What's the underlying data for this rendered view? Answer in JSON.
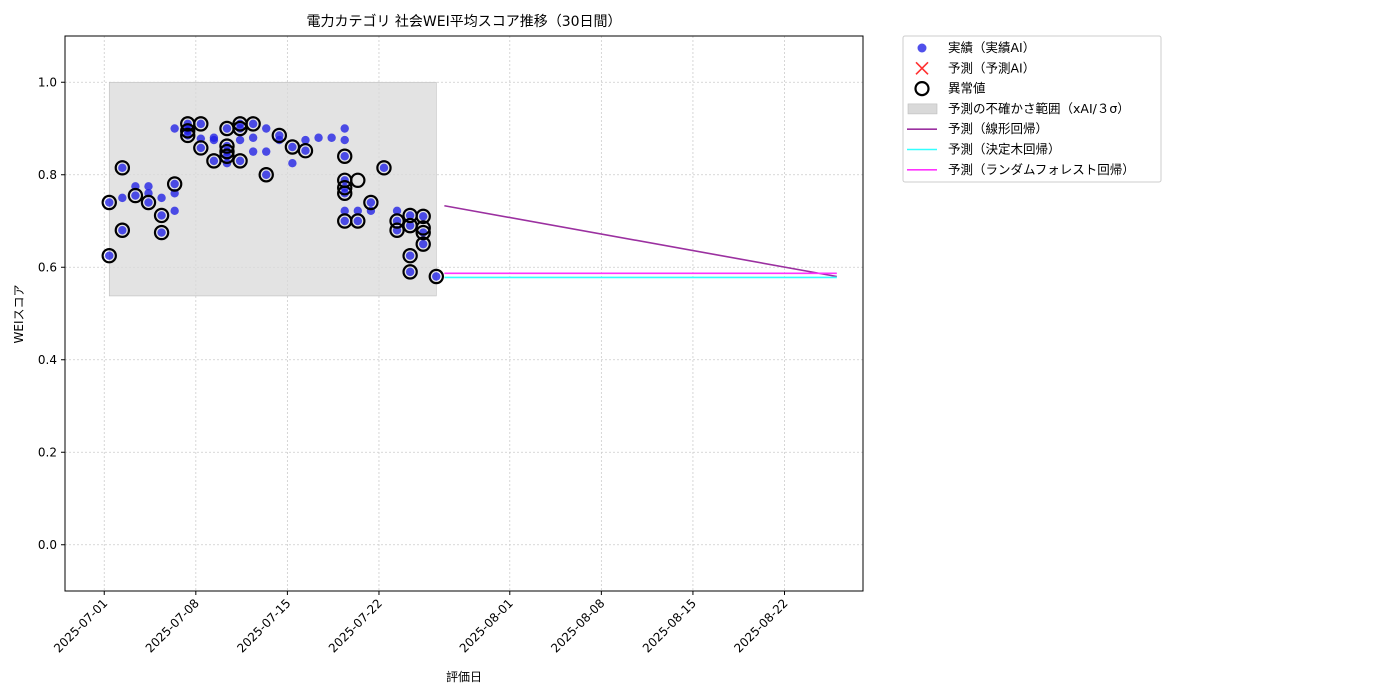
{
  "chart_data": {
    "type": "scatter",
    "title": "電力カテゴリ 社会WEI平均スコア推移（30日間）",
    "xlabel": "評価日",
    "ylabel": "WEIスコア",
    "ylim": [
      -0.1,
      1.1
    ],
    "xlim": [
      "2025-06-28",
      "2025-08-28"
    ],
    "y_ticks": [
      "0.0",
      "0.2",
      "0.4",
      "0.6",
      "0.8",
      "1.0"
    ],
    "x_ticks": [
      "2025-07-01",
      "2025-07-08",
      "2025-07-15",
      "2025-07-22",
      "2025-08-01",
      "2025-08-08",
      "2025-08-15",
      "2025-08-22"
    ],
    "grid": true,
    "legend_position": "outside-top-right",
    "colors": {
      "actual": "#1f1fe6",
      "predicted": "#ff3030",
      "anomaly_edge": "#000000",
      "band": "#d9d9d9",
      "linear": "#9b30a0",
      "tree": "#33ffff",
      "forest": "#ff33ff"
    },
    "legend": [
      {
        "key": "actual",
        "label": "実績（実績AI）"
      },
      {
        "key": "predicted",
        "label": "予測（予測AI）"
      },
      {
        "key": "anomaly",
        "label": "異常値"
      },
      {
        "key": "band",
        "label": "予測の不確かさ範囲（xAI/３σ）"
      },
      {
        "key": "linear",
        "label": "予測（線形回帰）"
      },
      {
        "key": "tree",
        "label": "予測（決定木回帰）"
      },
      {
        "key": "forest",
        "label": "予測（ランダムフォレスト回帰）"
      }
    ],
    "uncertainty_band": {
      "x_start": "2025-07-01",
      "x_end": "2025-07-26",
      "y_low": 0.538,
      "y_high": 1.0
    },
    "series": [
      {
        "name": "実績（実績AI）",
        "points": [
          [
            "2025-07-01",
            0.625
          ],
          [
            "2025-07-01",
            0.74
          ],
          [
            "2025-07-02",
            0.815
          ],
          [
            "2025-07-02",
            0.68
          ],
          [
            "2025-07-02",
            0.75
          ],
          [
            "2025-07-03",
            0.755
          ],
          [
            "2025-07-03",
            0.775
          ],
          [
            "2025-07-04",
            0.74
          ],
          [
            "2025-07-04",
            0.775
          ],
          [
            "2025-07-04",
            0.76
          ],
          [
            "2025-07-05",
            0.675
          ],
          [
            "2025-07-05",
            0.712
          ],
          [
            "2025-07-05",
            0.75
          ],
          [
            "2025-07-06",
            0.78
          ],
          [
            "2025-07-06",
            0.722
          ],
          [
            "2025-07-06",
            0.76
          ],
          [
            "2025-07-06",
            0.9
          ],
          [
            "2025-07-07",
            0.885
          ],
          [
            "2025-07-07",
            0.895
          ],
          [
            "2025-07-07",
            0.9
          ],
          [
            "2025-07-07",
            0.91
          ],
          [
            "2025-07-08",
            0.878
          ],
          [
            "2025-07-08",
            0.91
          ],
          [
            "2025-07-08",
            0.858
          ],
          [
            "2025-07-09",
            0.83
          ],
          [
            "2025-07-09",
            0.88
          ],
          [
            "2025-07-09",
            0.875
          ],
          [
            "2025-07-10",
            0.85
          ],
          [
            "2025-07-10",
            0.862
          ],
          [
            "2025-07-10",
            0.84
          ],
          [
            "2025-07-10",
            0.825
          ],
          [
            "2025-07-10",
            0.9
          ],
          [
            "2025-07-11",
            0.91
          ],
          [
            "2025-07-11",
            0.83
          ],
          [
            "2025-07-11",
            0.9
          ],
          [
            "2025-07-11",
            0.875
          ],
          [
            "2025-07-12",
            0.85
          ],
          [
            "2025-07-12",
            0.91
          ],
          [
            "2025-07-12",
            0.88
          ],
          [
            "2025-07-13",
            0.85
          ],
          [
            "2025-07-13",
            0.9
          ],
          [
            "2025-07-13",
            0.8
          ],
          [
            "2025-07-14",
            0.875
          ],
          [
            "2025-07-14",
            0.885
          ],
          [
            "2025-07-15",
            0.86
          ],
          [
            "2025-07-15",
            0.825
          ],
          [
            "2025-07-16",
            0.852
          ],
          [
            "2025-07-16",
            0.875
          ],
          [
            "2025-07-17",
            0.88
          ],
          [
            "2025-07-18",
            0.88
          ],
          [
            "2025-07-19",
            0.9
          ],
          [
            "2025-07-19",
            0.875
          ],
          [
            "2025-07-19",
            0.84
          ],
          [
            "2025-07-19",
            0.788
          ],
          [
            "2025-07-19",
            0.772
          ],
          [
            "2025-07-19",
            0.76
          ],
          [
            "2025-07-19",
            0.722
          ],
          [
            "2025-07-19",
            0.7
          ],
          [
            "2025-07-20",
            0.7
          ],
          [
            "2025-07-20",
            0.722
          ],
          [
            "2025-07-21",
            0.74
          ],
          [
            "2025-07-21",
            0.722
          ],
          [
            "2025-07-22",
            0.815
          ],
          [
            "2025-07-23",
            0.722
          ],
          [
            "2025-07-23",
            0.7
          ],
          [
            "2025-07-23",
            0.68
          ],
          [
            "2025-07-24",
            0.712
          ],
          [
            "2025-07-24",
            0.69
          ],
          [
            "2025-07-24",
            0.625
          ],
          [
            "2025-07-24",
            0.59
          ],
          [
            "2025-07-25",
            0.71
          ],
          [
            "2025-07-25",
            0.675
          ],
          [
            "2025-07-25",
            0.65
          ],
          [
            "2025-07-26",
            0.58
          ]
        ]
      },
      {
        "name": "異常値",
        "points": [
          [
            "2025-07-01",
            0.625
          ],
          [
            "2025-07-01",
            0.74
          ],
          [
            "2025-07-02",
            0.815
          ],
          [
            "2025-07-02",
            0.68
          ],
          [
            "2025-07-03",
            0.755
          ],
          [
            "2025-07-04",
            0.74
          ],
          [
            "2025-07-05",
            0.675
          ],
          [
            "2025-07-05",
            0.712
          ],
          [
            "2025-07-06",
            0.78
          ],
          [
            "2025-07-07",
            0.885
          ],
          [
            "2025-07-07",
            0.91
          ],
          [
            "2025-07-07",
            0.895
          ],
          [
            "2025-07-08",
            0.91
          ],
          [
            "2025-07-08",
            0.858
          ],
          [
            "2025-07-09",
            0.83
          ],
          [
            "2025-07-10",
            0.85
          ],
          [
            "2025-07-10",
            0.862
          ],
          [
            "2025-07-10",
            0.84
          ],
          [
            "2025-07-10",
            0.9
          ],
          [
            "2025-07-11",
            0.91
          ],
          [
            "2025-07-11",
            0.83
          ],
          [
            "2025-07-11",
            0.9
          ],
          [
            "2025-07-12",
            0.91
          ],
          [
            "2025-07-13",
            0.8
          ],
          [
            "2025-07-14",
            0.885
          ],
          [
            "2025-07-15",
            0.86
          ],
          [
            "2025-07-16",
            0.852
          ],
          [
            "2025-07-19",
            0.84
          ],
          [
            "2025-07-19",
            0.788
          ],
          [
            "2025-07-19",
            0.772
          ],
          [
            "2025-07-19",
            0.76
          ],
          [
            "2025-07-19",
            0.7
          ],
          [
            "2025-07-20",
            0.788
          ],
          [
            "2025-07-20",
            0.7
          ],
          [
            "2025-07-21",
            0.74
          ],
          [
            "2025-07-22",
            0.815
          ],
          [
            "2025-07-23",
            0.7
          ],
          [
            "2025-07-23",
            0.68
          ],
          [
            "2025-07-24",
            0.712
          ],
          [
            "2025-07-24",
            0.69
          ],
          [
            "2025-07-24",
            0.625
          ],
          [
            "2025-07-24",
            0.59
          ],
          [
            "2025-07-25",
            0.71
          ],
          [
            "2025-07-25",
            0.675
          ],
          [
            "2025-07-25",
            0.65
          ],
          [
            "2025-07-25",
            0.685
          ],
          [
            "2025-07-26",
            0.58
          ]
        ]
      },
      {
        "name": "予測（線形回帰）",
        "points": [
          [
            "2025-07-27",
            0.733
          ],
          [
            "2025-08-26",
            0.58
          ]
        ]
      },
      {
        "name": "予測（決定木回帰）",
        "points": [
          [
            "2025-07-27",
            0.578
          ],
          [
            "2025-08-26",
            0.578
          ]
        ]
      },
      {
        "name": "予測（ランダムフォレスト回帰）",
        "points": [
          [
            "2025-07-27",
            0.587
          ],
          [
            "2025-08-26",
            0.587
          ]
        ]
      }
    ]
  }
}
